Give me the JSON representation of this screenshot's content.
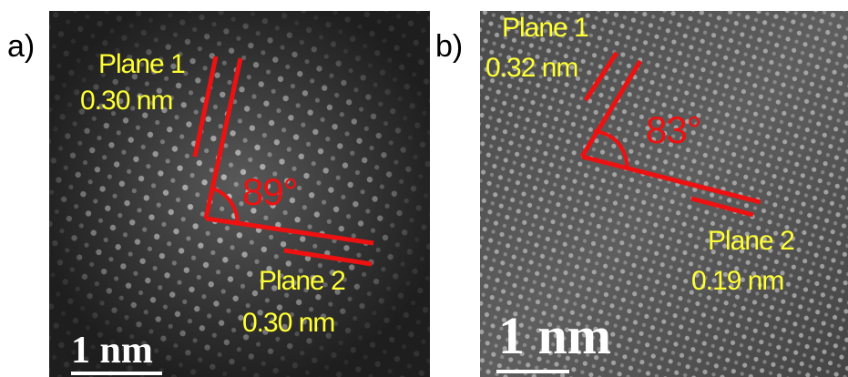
{
  "panels": [
    {
      "label": "a)",
      "plane1": {
        "name": "Plane 1",
        "spacing": "0.30 nm"
      },
      "plane2": {
        "name": "Plane 2",
        "spacing": "0.30 nm"
      },
      "angle": "89°",
      "scale_bar": "1 nm"
    },
    {
      "label": "b)",
      "plane1": {
        "name": "Plane 1",
        "spacing": "0.32 nm"
      },
      "plane2": {
        "name": "Plane 2",
        "spacing": "0.19 nm"
      },
      "angle": "83°",
      "scale_bar": "1 nm"
    }
  ],
  "colors": {
    "annotation_text": "#ffff33",
    "lines_and_angle": "#ee1111",
    "scale_bar": "#ffffff"
  }
}
